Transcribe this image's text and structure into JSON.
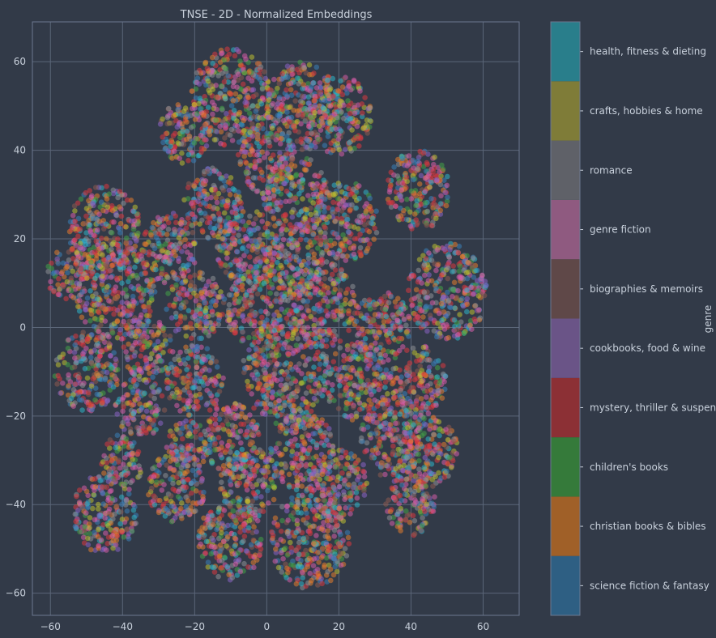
{
  "chart_data": {
    "type": "scatter",
    "title": "TNSE - 2D - Normalized Embeddings",
    "xlabel": "",
    "ylabel": "",
    "xlim": [
      -65,
      70
    ],
    "ylim": [
      -65,
      69
    ],
    "xticks": [
      -60,
      -40,
      -20,
      0,
      20,
      40,
      60
    ],
    "yticks": [
      -60,
      -40,
      -20,
      0,
      20,
      40,
      60
    ],
    "grid": true,
    "colorbar": {
      "label": "genre",
      "categories": [
        "science fiction & fantasy",
        "christian books & bibles",
        "children's books",
        "mystery, thriller & suspense",
        "cookbooks, food & wine",
        "biographies & memoirs",
        "genre fiction",
        "romance",
        "crafts, hobbies & home",
        "health, fitness & dieting"
      ],
      "colors": [
        "#2e5f83",
        "#a06028",
        "#357a3a",
        "#8c3035",
        "#6a5487",
        "#5f4848",
        "#8f5a80",
        "#5f6168",
        "#7f7c38",
        "#297e8b"
      ]
    },
    "clusters": [
      {
        "x": -10,
        "y": 52,
        "r": 11
      },
      {
        "x": -23,
        "y": 44,
        "r": 7
      },
      {
        "x": 10,
        "y": 50,
        "r": 10
      },
      {
        "x": 20,
        "y": 48,
        "r": 9
      },
      {
        "x": 42,
        "y": 31,
        "r": 9
      },
      {
        "x": 0,
        "y": 38,
        "r": 8
      },
      {
        "x": 8,
        "y": 30,
        "r": 9
      },
      {
        "x": -15,
        "y": 28,
        "r": 8
      },
      {
        "x": 22,
        "y": 24,
        "r": 9
      },
      {
        "x": -45,
        "y": 22,
        "r": 10
      },
      {
        "x": -55,
        "y": 12,
        "r": 6
      },
      {
        "x": -42,
        "y": 8,
        "r": 11
      },
      {
        "x": -27,
        "y": 18,
        "r": 8
      },
      {
        "x": -5,
        "y": 18,
        "r": 9
      },
      {
        "x": 8,
        "y": 15,
        "r": 8
      },
      {
        "x": 50,
        "y": 8,
        "r": 11
      },
      {
        "x": -20,
        "y": 5,
        "r": 8
      },
      {
        "x": -3,
        "y": 5,
        "r": 9
      },
      {
        "x": 15,
        "y": 5,
        "r": 10
      },
      {
        "x": 32,
        "y": 0,
        "r": 8
      },
      {
        "x": -50,
        "y": -10,
        "r": 9
      },
      {
        "x": -33,
        "y": -5,
        "r": 7
      },
      {
        "x": 5,
        "y": -10,
        "r": 12
      },
      {
        "x": -20,
        "y": -12,
        "r": 8
      },
      {
        "x": 25,
        "y": -12,
        "r": 9
      },
      {
        "x": 42,
        "y": -12,
        "r": 8
      },
      {
        "x": -35,
        "y": -18,
        "r": 7
      },
      {
        "x": 35,
        "y": -25,
        "r": 9
      },
      {
        "x": -40,
        "y": -30,
        "r": 6
      },
      {
        "x": -22,
        "y": -27,
        "r": 6
      },
      {
        "x": -10,
        "y": -25,
        "r": 8
      },
      {
        "x": 10,
        "y": -28,
        "r": 9
      },
      {
        "x": 45,
        "y": -28,
        "r": 8
      },
      {
        "x": -45,
        "y": -42,
        "r": 9
      },
      {
        "x": -25,
        "y": -36,
        "r": 8
      },
      {
        "x": -5,
        "y": -35,
        "r": 8
      },
      {
        "x": 20,
        "y": -35,
        "r": 8
      },
      {
        "x": 40,
        "y": -40,
        "r": 7
      },
      {
        "x": -10,
        "y": -48,
        "r": 9
      },
      {
        "x": 12,
        "y": -48,
        "r": 11
      }
    ]
  }
}
